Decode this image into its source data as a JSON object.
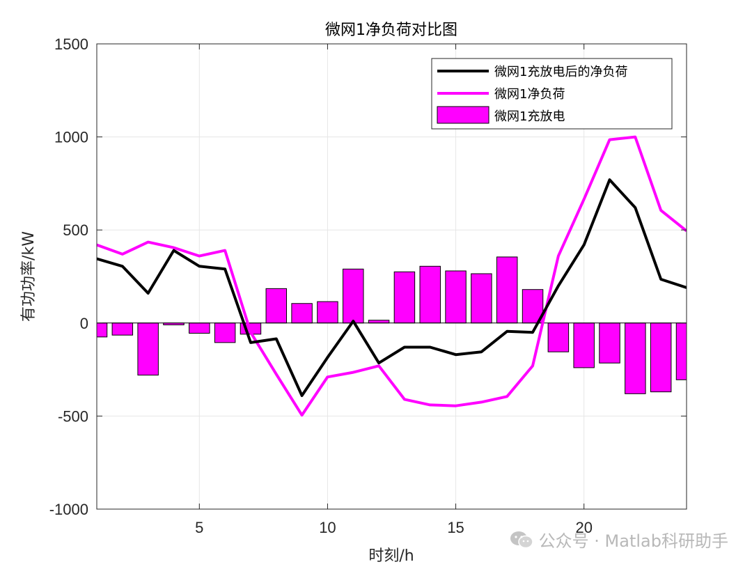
{
  "chart_data": {
    "type": "bar+line",
    "title": "微网1净负荷对比图",
    "xlabel": "时刻/h",
    "ylabel": "有功功率/kW",
    "xlim": [
      1,
      24
    ],
    "ylim": [
      -1000,
      1500
    ],
    "xticks": [
      5,
      10,
      15,
      20
    ],
    "yticks": [
      -1000,
      -500,
      0,
      500,
      1000,
      1500
    ],
    "grid": true,
    "legend_position": "top-right",
    "x": [
      1,
      2,
      3,
      4,
      5,
      6,
      7,
      8,
      9,
      10,
      11,
      12,
      13,
      14,
      15,
      16,
      17,
      18,
      19,
      20,
      21,
      22,
      23,
      24
    ],
    "series": [
      {
        "name": "微网1充放电后的净负荷",
        "kind": "line",
        "color": "#000000",
        "values": [
          345,
          305,
          160,
          390,
          305,
          290,
          -105,
          -85,
          -390,
          -185,
          10,
          -215,
          -130,
          -130,
          -170,
          -155,
          -45,
          -50,
          200,
          420,
          770,
          620,
          235,
          190
        ]
      },
      {
        "name": "微网1净负荷",
        "kind": "line",
        "color": "#ff00ff",
        "values": [
          420,
          370,
          435,
          405,
          360,
          390,
          -50,
          -275,
          -495,
          -290,
          -265,
          -230,
          -410,
          -440,
          -445,
          -425,
          -395,
          -230,
          360,
          665,
          985,
          1000,
          605,
          495
        ]
      },
      {
        "name": "微网1充放电",
        "kind": "bar",
        "color": "#ff00ff",
        "values": [
          -75,
          -65,
          -280,
          -10,
          -55,
          -105,
          -60,
          185,
          105,
          115,
          290,
          15,
          275,
          305,
          280,
          265,
          355,
          180,
          -155,
          -240,
          -215,
          -380,
          -370,
          -305
        ]
      }
    ]
  },
  "watermark": {
    "text": "公众号 · Matlab科研助手",
    "icon": "wechat-icon"
  }
}
